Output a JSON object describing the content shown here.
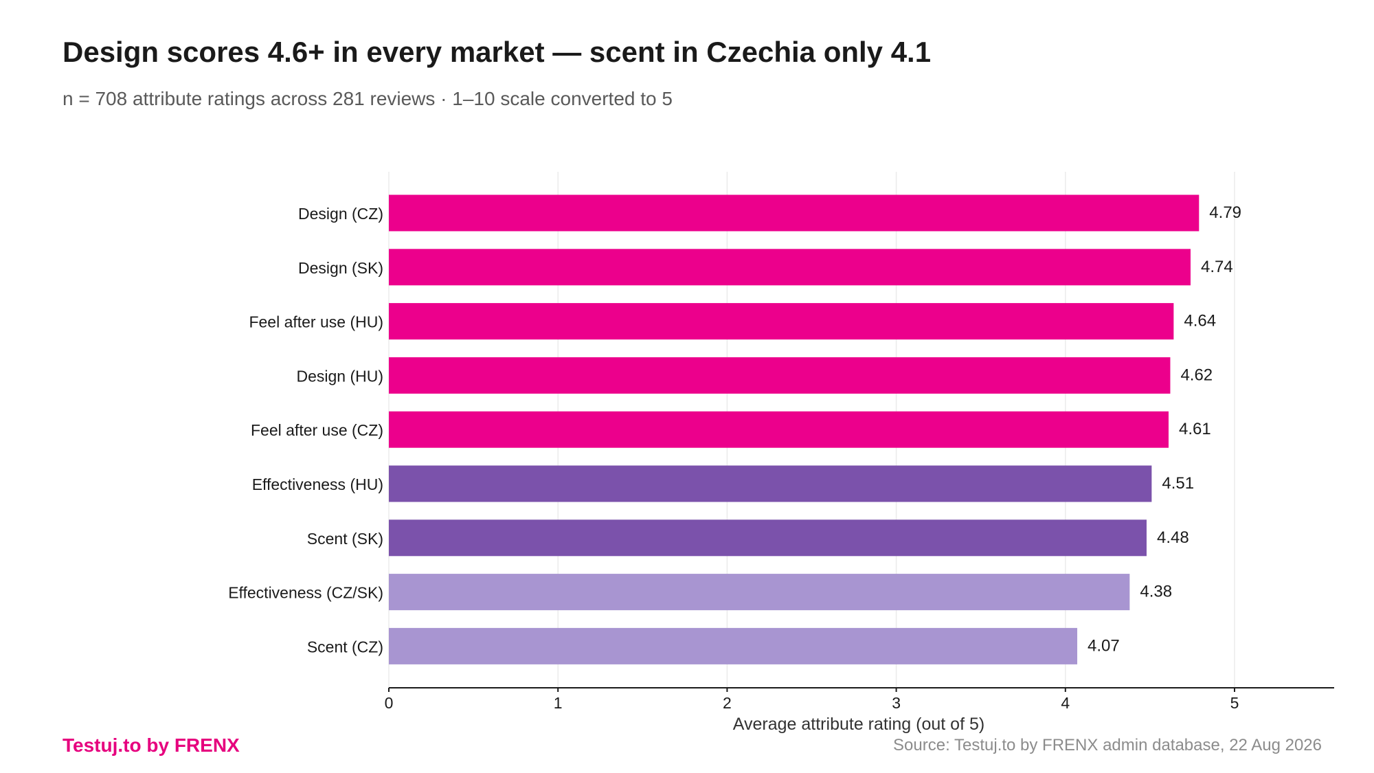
{
  "header": {
    "title": "Design scores 4.6+ in every market — scent in Czechia only 4.1",
    "subtitle": "n = 708 attribute ratings across 281 reviews · 1–10 scale converted to 5"
  },
  "footer": {
    "brand": "Testuj.to by FRENX",
    "source": "Source: Testuj.to by FRENX admin database, 22 Aug 2026"
  },
  "colors": {
    "brand": "#e6007e",
    "top_tier": "#ec008c",
    "mid_tier": "#7b52ab",
    "low_tier": "#a895d1"
  },
  "chart_data": {
    "type": "bar",
    "orientation": "horizontal",
    "title": "Design scores 4.6+ in every market — scent in Czechia only 4.1",
    "subtitle": "n = 708 attribute ratings across 281 reviews · 1–10 scale converted to 5",
    "xlabel": "Average attribute rating (out of 5)",
    "ylabel": "",
    "xlim": [
      0,
      5.6
    ],
    "xticks": [
      0,
      1,
      2,
      3,
      4,
      5
    ],
    "grid": true,
    "legend": "none",
    "categories": [
      "Design (CZ)",
      "Design (SK)",
      "Feel after use (HU)",
      "Design (HU)",
      "Feel after use (CZ)",
      "Effectiveness (HU)",
      "Scent (SK)",
      "Effectiveness (CZ/SK)",
      "Scent (CZ)"
    ],
    "values": [
      4.79,
      4.74,
      4.64,
      4.62,
      4.61,
      4.51,
      4.48,
      4.38,
      4.07
    ],
    "value_labels": [
      "4.79",
      "4.74",
      "4.64",
      "4.62",
      "4.61",
      "4.51",
      "4.48",
      "4.38",
      "4.07"
    ],
    "bar_colors": [
      "#ec008c",
      "#ec008c",
      "#ec008c",
      "#ec008c",
      "#ec008c",
      "#7b52ab",
      "#7b52ab",
      "#a895d1",
      "#a895d1"
    ]
  }
}
